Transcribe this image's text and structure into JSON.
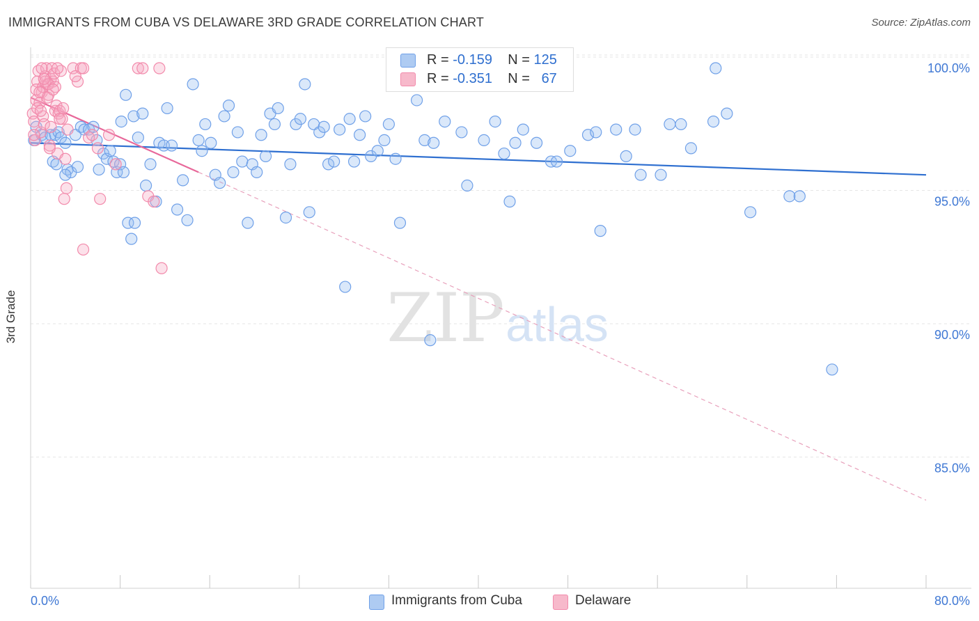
{
  "title": "IMMIGRANTS FROM CUBA VS DELAWARE 3RD GRADE CORRELATION CHART",
  "source": "Source: ZipAtlas.com",
  "watermark": {
    "zip": "ZIP",
    "atlas": "atlas"
  },
  "legend_top": [
    {
      "r_label": "R =",
      "r_value": "-0.159",
      "n_label": "N =",
      "n_value": "125",
      "color": "#aecbf2"
    },
    {
      "r_label": "R =",
      "r_value": "-0.351",
      "n_label": "N =",
      "n_value": "67",
      "color": "#f7b9cb"
    }
  ],
  "chart_data": {
    "type": "scatter",
    "title": "IMMIGRANTS FROM CUBA VS DELAWARE 3RD GRADE CORRELATION CHART",
    "xlabel": "",
    "ylabel": "3rd Grade",
    "xlim": [
      0,
      80
    ],
    "ylim": [
      80.4,
      100.5
    ],
    "x_tick_labels": [
      "0.0%",
      "80.0%"
    ],
    "y_ticks": [
      100,
      95,
      90,
      85
    ],
    "y_tick_labels": [
      "100.0%",
      "95.0%",
      "90.0%",
      "85.0%"
    ],
    "grid": true,
    "legend": "bottom-center",
    "series": [
      {
        "name": "Immigrants from Cuba",
        "color": "#6fa0e8",
        "fill": "rgba(150,188,240,0.35)",
        "trend": {
          "x": [
            0,
            80
          ],
          "y": [
            97.2,
            96.0
          ],
          "color": "#2e6fd0"
        },
        "points": [
          [
            0.3,
            97.3
          ],
          [
            0.5,
            97.8
          ],
          [
            1.0,
            97.5
          ],
          [
            1.3,
            97.4
          ],
          [
            1.8,
            97.5
          ],
          [
            2.0,
            96.5
          ],
          [
            2.2,
            97.5
          ],
          [
            2.5,
            97.6
          ],
          [
            2.7,
            97.4
          ],
          [
            3.1,
            97.2
          ],
          [
            3.3,
            96.2
          ],
          [
            3.6,
            96.1
          ],
          [
            4.0,
            97.5
          ],
          [
            4.2,
            96.3
          ],
          [
            4.5,
            97.8
          ],
          [
            4.8,
            97.7
          ],
          [
            5.2,
            97.7
          ],
          [
            5.6,
            97.8
          ],
          [
            5.9,
            97.3
          ],
          [
            6.1,
            96.2
          ],
          [
            6.5,
            96.8
          ],
          [
            6.8,
            96.6
          ],
          [
            7.1,
            96.9
          ],
          [
            7.4,
            96.5
          ],
          [
            7.7,
            96.1
          ],
          [
            8.0,
            96.4
          ],
          [
            8.3,
            96.1
          ],
          [
            2.3,
            96.4
          ],
          [
            3.1,
            96.0
          ],
          [
            8.7,
            94.2
          ],
          [
            9.0,
            93.6
          ],
          [
            9.3,
            94.2
          ],
          [
            8.1,
            98.0
          ],
          [
            8.5,
            99.0
          ],
          [
            9.2,
            98.2
          ],
          [
            9.6,
            97.4
          ],
          [
            10.0,
            98.3
          ],
          [
            10.3,
            95.6
          ],
          [
            10.7,
            96.4
          ],
          [
            11.2,
            95.0
          ],
          [
            11.5,
            97.2
          ],
          [
            11.9,
            97.1
          ],
          [
            12.2,
            98.5
          ],
          [
            12.6,
            97.1
          ],
          [
            13.1,
            94.7
          ],
          [
            13.6,
            95.8
          ],
          [
            14.0,
            94.3
          ],
          [
            14.5,
            99.4
          ],
          [
            15.0,
            97.3
          ],
          [
            15.3,
            96.9
          ],
          [
            15.6,
            97.9
          ],
          [
            16.1,
            97.2
          ],
          [
            16.5,
            96.0
          ],
          [
            16.9,
            95.7
          ],
          [
            17.3,
            98.2
          ],
          [
            17.7,
            98.6
          ],
          [
            18.1,
            96.1
          ],
          [
            18.5,
            97.6
          ],
          [
            18.9,
            96.5
          ],
          [
            19.4,
            94.2
          ],
          [
            19.8,
            96.4
          ],
          [
            20.2,
            96.1
          ],
          [
            20.6,
            97.5
          ],
          [
            21.0,
            96.7
          ],
          [
            21.4,
            98.3
          ],
          [
            21.8,
            97.9
          ],
          [
            22.1,
            98.5
          ],
          [
            22.8,
            94.4
          ],
          [
            23.2,
            96.4
          ],
          [
            23.7,
            97.9
          ],
          [
            24.1,
            98.1
          ],
          [
            24.5,
            99.4
          ],
          [
            24.9,
            94.6
          ],
          [
            25.3,
            97.9
          ],
          [
            25.8,
            97.6
          ],
          [
            26.2,
            97.8
          ],
          [
            26.6,
            96.4
          ],
          [
            27.1,
            96.5
          ],
          [
            27.6,
            97.7
          ],
          [
            28.1,
            91.8
          ],
          [
            28.5,
            98.1
          ],
          [
            28.9,
            96.5
          ],
          [
            29.4,
            97.5
          ],
          [
            29.9,
            98.2
          ],
          [
            30.4,
            96.7
          ],
          [
            31.0,
            96.9
          ],
          [
            31.6,
            97.3
          ],
          [
            32.0,
            97.9
          ],
          [
            32.6,
            96.6
          ],
          [
            33.0,
            94.2
          ],
          [
            34.5,
            98.8
          ],
          [
            35.2,
            97.3
          ],
          [
            36.0,
            97.2
          ],
          [
            37.0,
            98.0
          ],
          [
            38.5,
            97.6
          ],
          [
            39.0,
            95.6
          ],
          [
            40.5,
            97.3
          ],
          [
            41.5,
            98.0
          ],
          [
            42.3,
            96.8
          ],
          [
            42.8,
            95.0
          ],
          [
            43.3,
            97.2
          ],
          [
            44.0,
            97.7
          ],
          [
            45.2,
            97.2
          ],
          [
            46.5,
            96.5
          ],
          [
            47.0,
            96.5
          ],
          [
            48.2,
            96.9
          ],
          [
            49.8,
            97.5
          ],
          [
            50.5,
            97.6
          ],
          [
            50.9,
            93.9
          ],
          [
            52.3,
            97.7
          ],
          [
            53.2,
            96.7
          ],
          [
            54.0,
            97.7
          ],
          [
            54.5,
            96.0
          ],
          [
            56.3,
            96.0
          ],
          [
            57.1,
            97.9
          ],
          [
            58.1,
            97.9
          ],
          [
            59.0,
            97.0
          ],
          [
            61.0,
            98.0
          ],
          [
            61.2,
            100.0
          ],
          [
            62.2,
            98.3
          ],
          [
            64.3,
            94.6
          ],
          [
            67.8,
            95.2
          ],
          [
            68.7,
            95.2
          ],
          [
            71.6,
            88.7
          ],
          [
            33.2,
            100.0
          ],
          [
            35.7,
            89.8
          ]
        ]
      },
      {
        "name": "Delaware",
        "color": "#f28aab",
        "fill": "rgba(247,170,195,0.35)",
        "trend": {
          "x": [
            0,
            15.0
          ],
          "y": [
            98.9,
            96.1
          ],
          "color": "#e8689a"
        },
        "trend_extension": {
          "x": [
            15.0,
            80
          ],
          "y": [
            96.1,
            83.8
          ]
        },
        "points": [
          [
            0.2,
            98.3
          ],
          [
            0.3,
            98.0
          ],
          [
            0.4,
            97.3
          ],
          [
            0.5,
            98.8
          ],
          [
            0.6,
            99.5
          ],
          [
            0.7,
            99.9
          ],
          [
            0.8,
            98.7
          ],
          [
            0.9,
            97.6
          ],
          [
            1.0,
            99.1
          ],
          [
            1.1,
            98.2
          ],
          [
            1.2,
            97.9
          ],
          [
            1.3,
            99.7
          ],
          [
            1.4,
            100.0
          ],
          [
            1.5,
            99.4
          ],
          [
            1.6,
            99.0
          ],
          [
            1.7,
            97.1
          ],
          [
            1.8,
            99.6
          ],
          [
            1.9,
            100.0
          ],
          [
            2.0,
            99.5
          ],
          [
            2.1,
            99.8
          ],
          [
            2.2,
            98.4
          ],
          [
            2.3,
            98.6
          ],
          [
            2.4,
            96.8
          ],
          [
            2.5,
            98.3
          ],
          [
            2.6,
            98.4
          ],
          [
            2.7,
            99.9
          ],
          [
            2.8,
            98.1
          ],
          [
            3.0,
            95.1
          ],
          [
            3.3,
            97.7
          ],
          [
            3.8,
            100.0
          ],
          [
            4.2,
            99.5
          ],
          [
            4.5,
            100.0
          ],
          [
            4.7,
            100.0
          ],
          [
            5.2,
            97.4
          ],
          [
            5.5,
            97.5
          ],
          [
            6.0,
            97.0
          ],
          [
            6.2,
            95.1
          ],
          [
            7.0,
            97.5
          ],
          [
            7.6,
            96.4
          ],
          [
            9.6,
            100.0
          ],
          [
            10.0,
            100.0
          ],
          [
            10.5,
            95.2
          ],
          [
            11.0,
            95.0
          ],
          [
            11.5,
            100.0
          ],
          [
            11.7,
            92.5
          ],
          [
            4.7,
            93.2
          ],
          [
            0.5,
            99.2
          ],
          [
            0.6,
            98.5
          ],
          [
            0.9,
            98.4
          ],
          [
            1.1,
            99.3
          ],
          [
            1.3,
            99.5
          ],
          [
            1.5,
            98.9
          ],
          [
            1.6,
            99.4
          ],
          [
            1.8,
            97.8
          ],
          [
            2.2,
            99.3
          ],
          [
            2.6,
            98.1
          ],
          [
            2.9,
            98.5
          ],
          [
            3.1,
            96.6
          ],
          [
            0.3,
            97.5
          ],
          [
            0.8,
            99.1
          ],
          [
            1.0,
            100.0
          ],
          [
            1.2,
            99.6
          ],
          [
            2.0,
            99.2
          ],
          [
            2.4,
            100.0
          ],
          [
            4.0,
            99.7
          ],
          [
            1.7,
            97.0
          ],
          [
            3.2,
            95.5
          ]
        ]
      }
    ]
  }
}
